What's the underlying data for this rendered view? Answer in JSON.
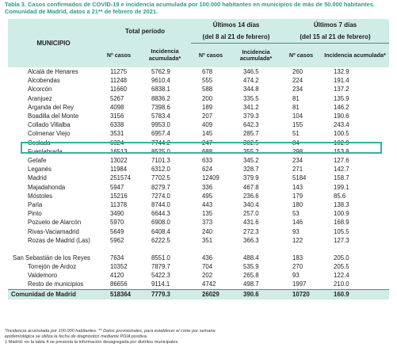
{
  "caption": "Tabla 3. Casos confirmados de COVID-19 e incidencia acumulada por 100.000 habitantes en municipios de más de 50.000 habitantes. Comunidad de Madrid, datos a 21** de febrero de 2021.",
  "headers": {
    "municipio": "MUNICIPIO",
    "total": "Total período",
    "last14_line1": "Últimos 14 días",
    "last14_line2": "(del 8 al 21 de febrero)",
    "last7_line1": "Últimos 7 días",
    "last7_line2": "(del 15 al 21 de febrero)",
    "n_casos": "Nº casos",
    "incidencia": "Incidencia acumulada*"
  },
  "rows": [
    {
      "name": "Alcalá de Henares",
      "c1": "11275",
      "i1": "5762.9",
      "c2": "678",
      "i2": "346.5",
      "c3": "260",
      "i3": "132.9"
    },
    {
      "name": "Alcobendas",
      "c1": "11248",
      "i1": "9610.4",
      "c2": "555",
      "i2": "474.2",
      "c3": "224",
      "i3": "191.4"
    },
    {
      "name": "Alcorcón",
      "c1": "11660",
      "i1": "6838.1",
      "c2": "588",
      "i2": "344.8",
      "c3": "234",
      "i3": "137.2"
    },
    {
      "name": "Aranjuez",
      "c1": "5267",
      "i1": "8836.2",
      "c2": "200",
      "i2": "335.5",
      "c3": "81",
      "i3": "135.9"
    },
    {
      "name": "Arganda del Rey",
      "c1": "4098",
      "i1": "7398.6",
      "c2": "189",
      "i2": "341.2",
      "c3": "81",
      "i3": "146.2"
    },
    {
      "name": "Boadilla del Monte",
      "c1": "3156",
      "i1": "5783.4",
      "c2": "207",
      "i2": "379.3",
      "c3": "104",
      "i3": "190.6"
    },
    {
      "name": "Collado Villalba",
      "c1": "6338",
      "i1": "9953.0",
      "c2": "409",
      "i2": "642.3",
      "c3": "155",
      "i3": "243.4"
    },
    {
      "name": "Colmenar Viejo",
      "c1": "3531",
      "i1": "6957.4",
      "c2": "145",
      "i2": "285.7",
      "c3": "51",
      "i3": "100.5"
    },
    {
      "name": "Coslada",
      "c1": "6324",
      "i1": "7744.2",
      "c2": "247",
      "i2": "302.5",
      "c3": "84",
      "i3": "102.9"
    },
    {
      "name": "Fuenlabrada",
      "c1": "16513",
      "i1": "8525.0",
      "c2": "688",
      "i2": "355.2",
      "c3": "298",
      "i3": "153.8"
    },
    {
      "name": "Getafe",
      "c1": "13022",
      "i1": "7101.3",
      "c2": "633",
      "i2": "345.2",
      "c3": "234",
      "i3": "127.6"
    },
    {
      "name": "Leganés",
      "c1": "11984",
      "i1": "6312.0",
      "c2": "624",
      "i2": "328.7",
      "c3": "271",
      "i3": "142.7"
    },
    {
      "name": "Madrid",
      "c1": "251574",
      "i1": "7702.5",
      "c2": "12409",
      "i2": "379.9",
      "c3": "5184",
      "i3": "158.7"
    },
    {
      "name": "Majadahonda",
      "c1": "5947",
      "i1": "8279.7",
      "c2": "336",
      "i2": "467.8",
      "c3": "143",
      "i3": "199.1"
    },
    {
      "name": "Móstoles",
      "c1": "15216",
      "i1": "7274.0",
      "c2": "495",
      "i2": "236.6",
      "c3": "179",
      "i3": "85.6"
    },
    {
      "name": "Parla",
      "c1": "11378",
      "i1": "8744.0",
      "c2": "443",
      "i2": "340.4",
      "c3": "180",
      "i3": "138.3"
    },
    {
      "name": "Pinto",
      "c1": "3490",
      "i1": "6644.3",
      "c2": "135",
      "i2": "257.0",
      "c3": "53",
      "i3": "100.9"
    },
    {
      "name": "Pozuelo de Alarcón",
      "c1": "5970",
      "i1": "6908.0",
      "c2": "373",
      "i2": "431.6",
      "c3": "146",
      "i3": "168.9"
    },
    {
      "name": "Rivas-Vaciamadrid",
      "c1": "5649",
      "i1": "6408.4",
      "c2": "240",
      "i2": "272.3",
      "c3": "93",
      "i3": "105.5"
    },
    {
      "name": "Rozas de Madrid (Las)",
      "c1": "5962",
      "i1": "6222.5",
      "c2": "351",
      "i2": "366.3",
      "c3": "122",
      "i3": "127.3"
    },
    {
      "name": "San Sebastián de los Reyes",
      "tall": true,
      "c1": "7634",
      "i1": "8551.0",
      "c2": "436",
      "i2": "488.4",
      "c3": "183",
      "i3": "205.0"
    },
    {
      "name": "Torrejón de Ardoz",
      "c1": "10352",
      "i1": "7879.7",
      "c2": "704",
      "c3": "270",
      "i2": "535.9",
      "i3": "205.5"
    },
    {
      "name": "Valdemoro",
      "c1": "4120",
      "i1": "5422.3",
      "c2": "202",
      "i2": "265.8",
      "c3": "93",
      "i3": "122.4"
    },
    {
      "name": "Resto de municipios",
      "c1": "86656",
      "i1": "9114.1",
      "c2": "4742",
      "i2": "498.7",
      "c3": "1997",
      "i3": "210.0"
    }
  ],
  "total": {
    "name": "Comunidad de Madrid",
    "c1": "518364",
    "i1": "7779.3",
    "c2": "26029",
    "i2": "390.6",
    "c3": "10720",
    "i3": "160.9"
  },
  "notes": [
    "*Incidencia acumulada por 100.000 habitantes. ** Datos provisionales, para establecer el corte por semana",
    "epidemiológica se utiliza la fecha de diagnóstico mediante PDIA positiva.",
    "‡ Madrid: en la tabla 4 se presenta la información desagregada por distritos municipales."
  ],
  "colors": {
    "accent": "#2c9a8a",
    "header_bg": "#d0ece7",
    "highlight": "#2cb5a3"
  }
}
